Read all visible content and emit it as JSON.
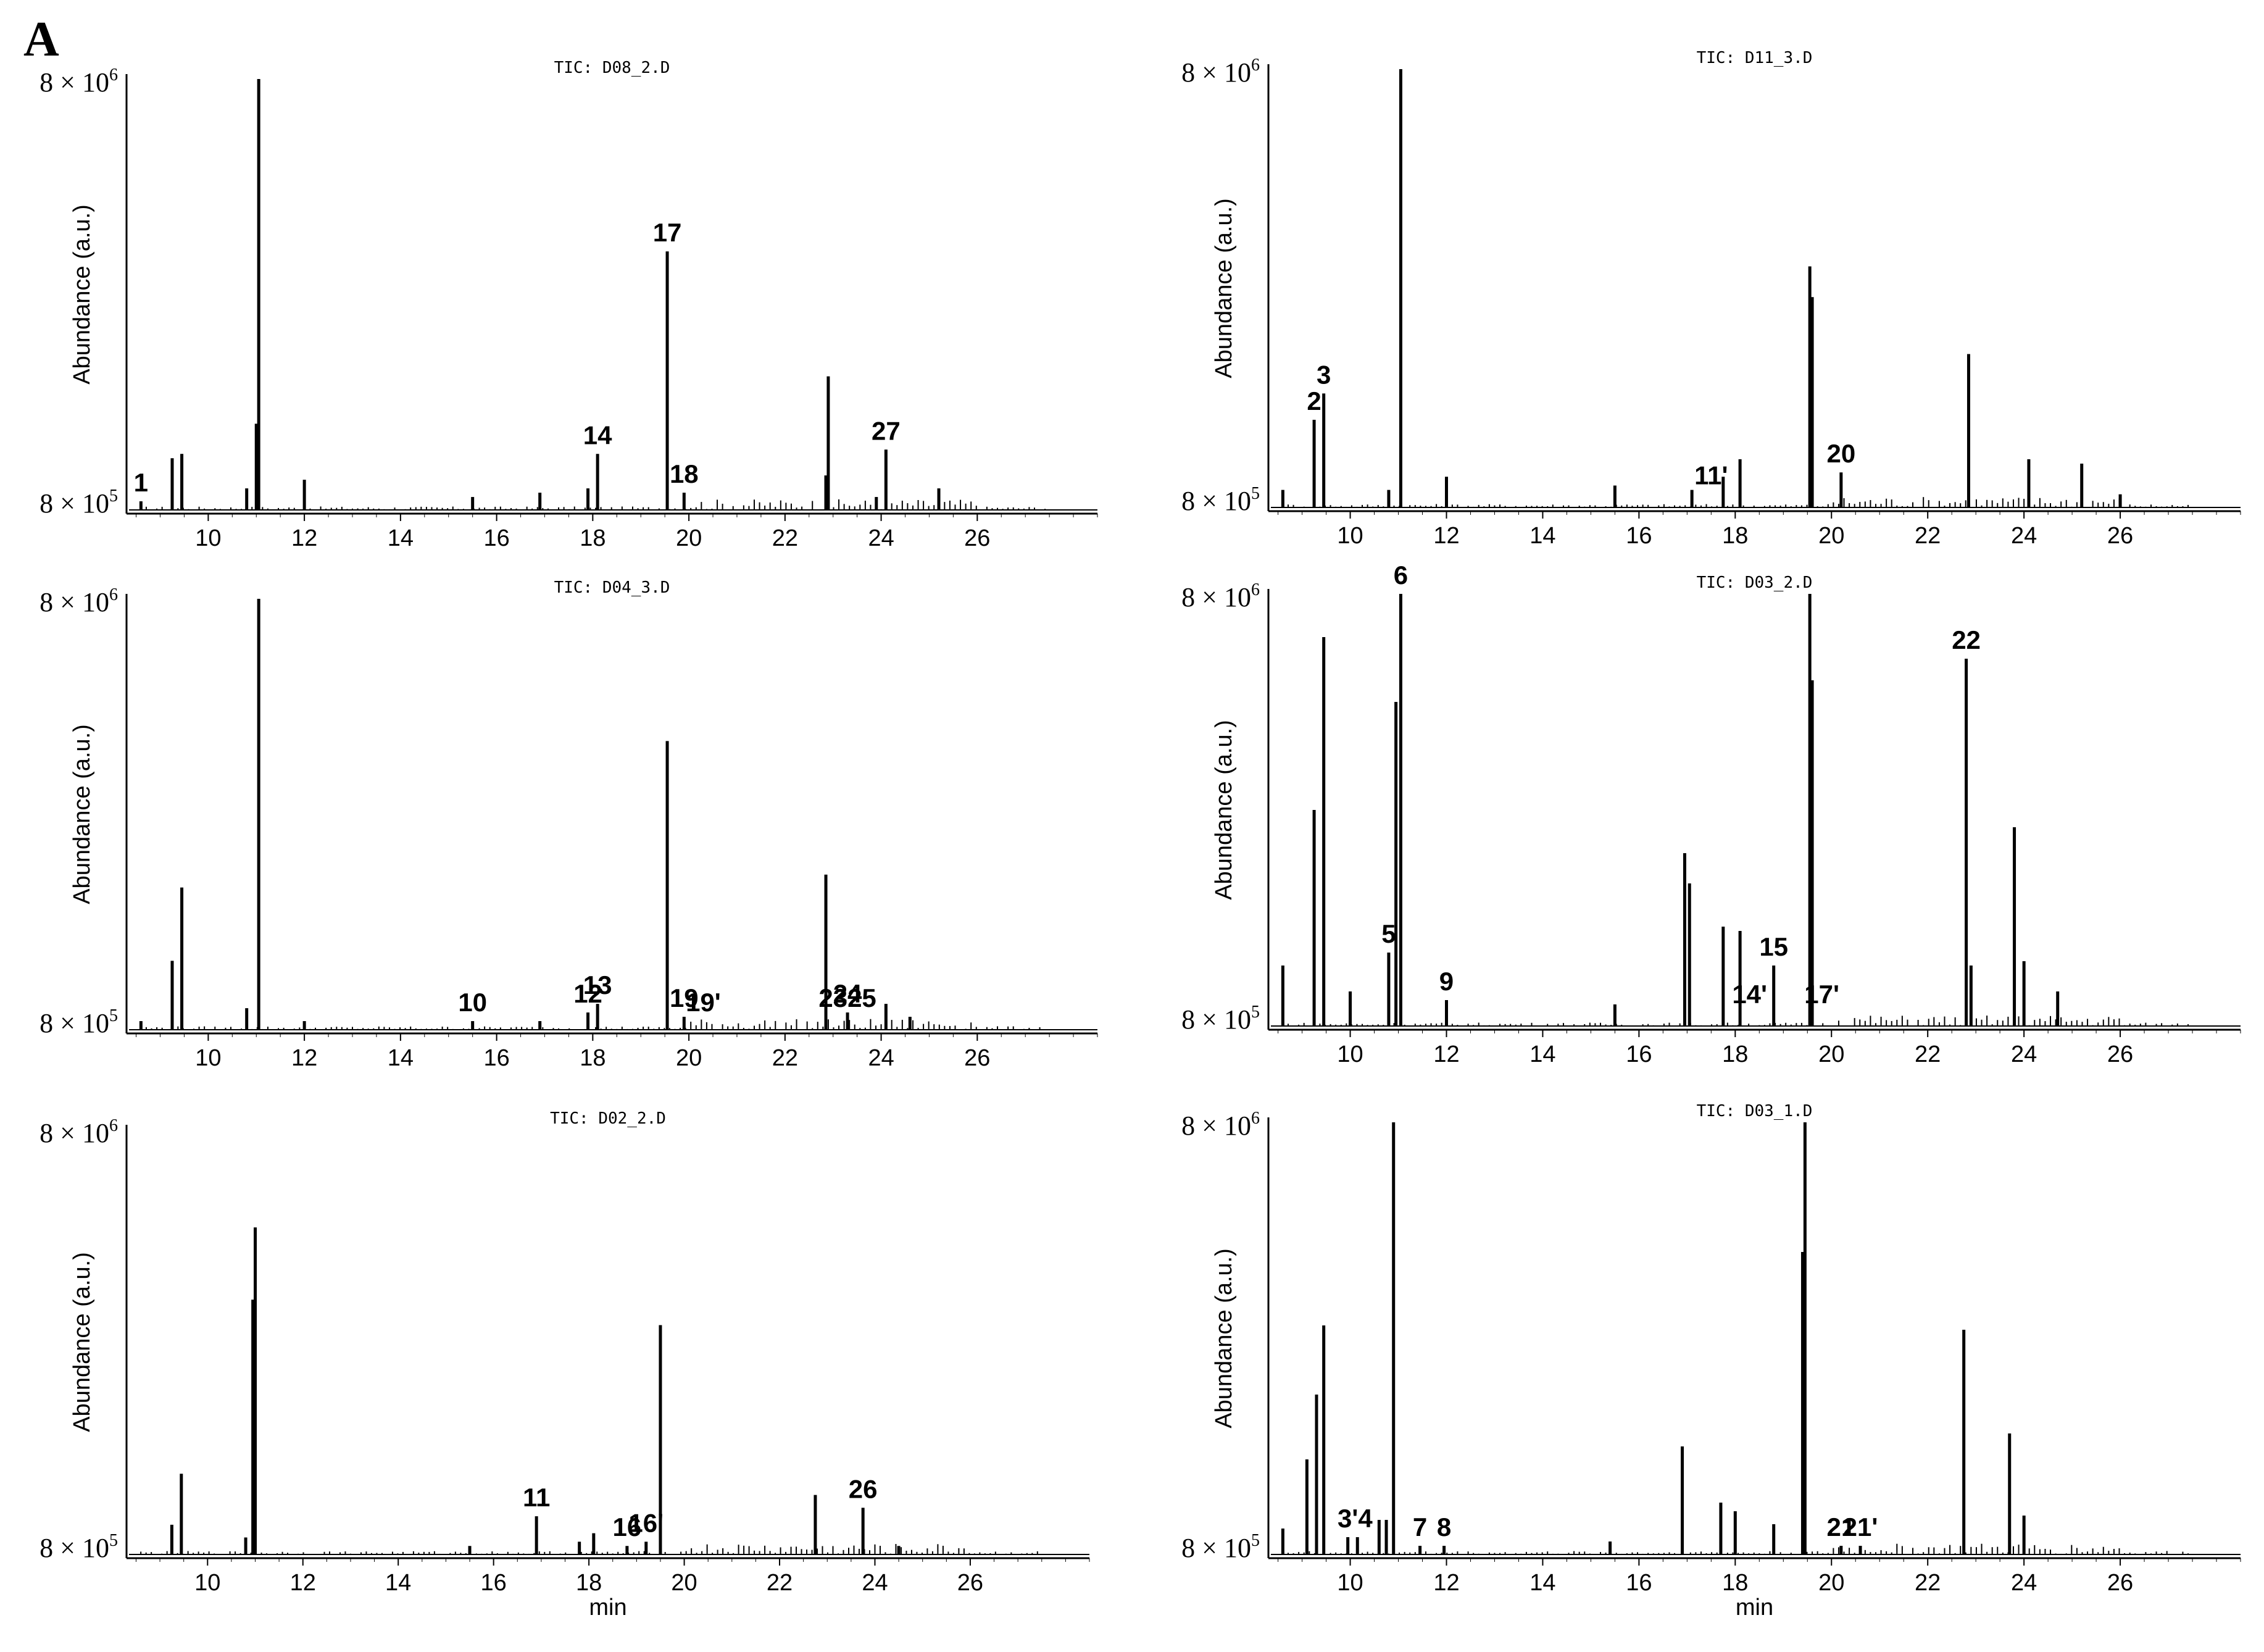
{
  "figure": {
    "label": "A"
  },
  "chart_data": [
    {
      "type": "line",
      "title": "TIC: D08_2.D",
      "ylabel": "Abundance (a.u.)",
      "xlabel": "",
      "xlim": [
        8.3,
        28.5
      ],
      "x_ticks": [
        "10",
        "12",
        "14",
        "16",
        "18",
        "20",
        "22",
        "24",
        "26"
      ],
      "y_ticks": {
        "top": "8 × 10",
        "top_exp": "6",
        "bottom": "8 × 10",
        "bottom_exp": "5"
      },
      "peaks": [
        {
          "rt": 8.6,
          "h": 0.02
        },
        {
          "rt": 9.25,
          "h": 0.12
        },
        {
          "rt": 9.45,
          "h": 0.13
        },
        {
          "rt": 10.8,
          "h": 0.05
        },
        {
          "rt": 11.0,
          "h": 0.2
        },
        {
          "rt": 11.05,
          "h": 1.0
        },
        {
          "rt": 12.0,
          "h": 0.07
        },
        {
          "rt": 15.5,
          "h": 0.03
        },
        {
          "rt": 16.9,
          "h": 0.04
        },
        {
          "rt": 17.9,
          "h": 0.05
        },
        {
          "rt": 18.1,
          "h": 0.13
        },
        {
          "rt": 19.55,
          "h": 0.6
        },
        {
          "rt": 19.9,
          "h": 0.04
        },
        {
          "rt": 22.85,
          "h": 0.08
        },
        {
          "rt": 22.9,
          "h": 0.31
        },
        {
          "rt": 23.9,
          "h": 0.03
        },
        {
          "rt": 24.1,
          "h": 0.14
        },
        {
          "rt": 25.2,
          "h": 0.05
        }
      ],
      "peak_labels": [
        {
          "label": "1",
          "rt": 8.6,
          "h": 0.02
        },
        {
          "label": "14",
          "rt": 18.1,
          "h": 0.13
        },
        {
          "label": "17",
          "rt": 19.55,
          "h": 0.6
        },
        {
          "label": "18",
          "rt": 19.9,
          "h": 0.04
        },
        {
          "label": "27",
          "rt": 24.1,
          "h": 0.14
        }
      ]
    },
    {
      "type": "line",
      "title": "TIC: D11_3.D",
      "ylabel": "Abundance (a.u.)",
      "xlabel": "",
      "xlim": [
        8.3,
        28.5
      ],
      "x_ticks": [
        "10",
        "12",
        "14",
        "16",
        "18",
        "20",
        "22",
        "24",
        "26"
      ],
      "y_ticks": {
        "top": "8 × 10",
        "top_exp": "6",
        "bottom": "8 × 10",
        "bottom_exp": "5"
      },
      "peaks": [
        {
          "rt": 8.6,
          "h": 0.04
        },
        {
          "rt": 9.25,
          "h": 0.2
        },
        {
          "rt": 9.45,
          "h": 0.26
        },
        {
          "rt": 10.8,
          "h": 0.04
        },
        {
          "rt": 11.05,
          "h": 1.0
        },
        {
          "rt": 12.0,
          "h": 0.07
        },
        {
          "rt": 15.5,
          "h": 0.05
        },
        {
          "rt": 17.1,
          "h": 0.04
        },
        {
          "rt": 17.75,
          "h": 0.07
        },
        {
          "rt": 18.1,
          "h": 0.11
        },
        {
          "rt": 19.55,
          "h": 0.55
        },
        {
          "rt": 19.6,
          "h": 0.48
        },
        {
          "rt": 20.2,
          "h": 0.08
        },
        {
          "rt": 22.85,
          "h": 0.35
        },
        {
          "rt": 24.1,
          "h": 0.11
        },
        {
          "rt": 25.2,
          "h": 0.1
        },
        {
          "rt": 26.0,
          "h": 0.03
        }
      ],
      "peak_labels": [
        {
          "label": "2",
          "rt": 9.25,
          "h": 0.2
        },
        {
          "label": "3",
          "rt": 9.45,
          "h": 0.26
        },
        {
          "label": "11'",
          "rt": 17.5,
          "h": 0.03
        },
        {
          "label": "20",
          "rt": 20.2,
          "h": 0.08
        }
      ]
    },
    {
      "type": "line",
      "title": "TIC: D04_3.D",
      "ylabel": "Abundance (a.u.)",
      "xlabel": "",
      "xlim": [
        8.3,
        28.5
      ],
      "x_ticks": [
        "10",
        "12",
        "14",
        "16",
        "18",
        "20",
        "22",
        "24",
        "26"
      ],
      "y_ticks": {
        "top": "8 × 10",
        "top_exp": "6",
        "bottom": "8 × 10",
        "bottom_exp": "5"
      },
      "peaks": [
        {
          "rt": 8.6,
          "h": 0.02
        },
        {
          "rt": 9.25,
          "h": 0.16
        },
        {
          "rt": 9.45,
          "h": 0.33
        },
        {
          "rt": 10.8,
          "h": 0.05
        },
        {
          "rt": 11.05,
          "h": 1.0
        },
        {
          "rt": 12.0,
          "h": 0.02
        },
        {
          "rt": 15.5,
          "h": 0.02
        },
        {
          "rt": 16.9,
          "h": 0.02
        },
        {
          "rt": 17.9,
          "h": 0.04
        },
        {
          "rt": 18.1,
          "h": 0.06
        },
        {
          "rt": 19.55,
          "h": 0.67
        },
        {
          "rt": 19.9,
          "h": 0.03
        },
        {
          "rt": 22.85,
          "h": 0.36
        },
        {
          "rt": 23.3,
          "h": 0.04
        },
        {
          "rt": 24.1,
          "h": 0.06
        },
        {
          "rt": 24.6,
          "h": 0.03
        }
      ],
      "peak_labels": [
        {
          "label": "10",
          "rt": 15.5,
          "h": 0.02
        },
        {
          "label": "12",
          "rt": 17.9,
          "h": 0.04
        },
        {
          "label": "13",
          "rt": 18.1,
          "h": 0.06
        },
        {
          "label": "19",
          "rt": 19.9,
          "h": 0.03
        },
        {
          "label": "19'",
          "rt": 20.3,
          "h": 0.02
        },
        {
          "label": "23",
          "rt": 23.0,
          "h": 0.03
        },
        {
          "label": "24",
          "rt": 23.3,
          "h": 0.04
        },
        {
          "label": "25",
          "rt": 23.6,
          "h": 0.03
        }
      ]
    },
    {
      "type": "line",
      "title": "TIC: D03_2.D",
      "ylabel": "Abundance (a.u.)",
      "xlabel": "",
      "xlim": [
        8.3,
        28.5
      ],
      "x_ticks": [
        "10",
        "12",
        "14",
        "16",
        "18",
        "20",
        "22",
        "24",
        "26"
      ],
      "y_ticks": {
        "top": "8 × 10",
        "top_exp": "6",
        "bottom": "8 × 10",
        "bottom_exp": "5"
      },
      "peaks": [
        {
          "rt": 8.6,
          "h": 0.14
        },
        {
          "rt": 9.25,
          "h": 0.5
        },
        {
          "rt": 9.45,
          "h": 0.9
        },
        {
          "rt": 10.0,
          "h": 0.08
        },
        {
          "rt": 10.8,
          "h": 0.17
        },
        {
          "rt": 10.95,
          "h": 0.75
        },
        {
          "rt": 11.05,
          "h": 1.0
        },
        {
          "rt": 12.0,
          "h": 0.06
        },
        {
          "rt": 15.5,
          "h": 0.05
        },
        {
          "rt": 16.95,
          "h": 0.4
        },
        {
          "rt": 17.05,
          "h": 0.33
        },
        {
          "rt": 17.75,
          "h": 0.23
        },
        {
          "rt": 18.1,
          "h": 0.22
        },
        {
          "rt": 18.8,
          "h": 0.14
        },
        {
          "rt": 19.55,
          "h": 1.0
        },
        {
          "rt": 19.6,
          "h": 0.8
        },
        {
          "rt": 22.8,
          "h": 0.85
        },
        {
          "rt": 22.9,
          "h": 0.14
        },
        {
          "rt": 23.8,
          "h": 0.46
        },
        {
          "rt": 24.0,
          "h": 0.15
        },
        {
          "rt": 24.7,
          "h": 0.08
        }
      ],
      "peak_labels": [
        {
          "label": "5",
          "rt": 10.8,
          "h": 0.17
        },
        {
          "label": "6",
          "rt": 11.05,
          "h": 1.0
        },
        {
          "label": "9",
          "rt": 12.0,
          "h": 0.06
        },
        {
          "label": "14'",
          "rt": 18.3,
          "h": 0.03
        },
        {
          "label": "15",
          "rt": 18.8,
          "h": 0.14
        },
        {
          "label": "17'",
          "rt": 19.8,
          "h": 0.03
        },
        {
          "label": "22",
          "rt": 22.8,
          "h": 0.85
        }
      ]
    },
    {
      "type": "line",
      "title": "TIC: D02_2.D",
      "ylabel": "Abundance (a.u.)",
      "xlabel": "min",
      "xlim": [
        8.3,
        28.5
      ],
      "x_ticks": [
        "10",
        "12",
        "14",
        "16",
        "18",
        "20",
        "22",
        "24",
        "26"
      ],
      "y_ticks": {
        "top": "8 × 10",
        "top_exp": "6",
        "bottom": "8 × 10",
        "bottom_exp": "5"
      },
      "peaks": [
        {
          "rt": 9.25,
          "h": 0.07
        },
        {
          "rt": 9.45,
          "h": 0.19
        },
        {
          "rt": 10.8,
          "h": 0.04
        },
        {
          "rt": 10.95,
          "h": 0.6
        },
        {
          "rt": 11.0,
          "h": 0.77
        },
        {
          "rt": 15.5,
          "h": 0.02
        },
        {
          "rt": 16.9,
          "h": 0.09
        },
        {
          "rt": 17.8,
          "h": 0.03
        },
        {
          "rt": 18.1,
          "h": 0.05
        },
        {
          "rt": 18.8,
          "h": 0.02
        },
        {
          "rt": 19.2,
          "h": 0.03
        },
        {
          "rt": 19.5,
          "h": 0.54
        },
        {
          "rt": 22.75,
          "h": 0.14
        },
        {
          "rt": 23.75,
          "h": 0.11
        },
        {
          "rt": 24.5,
          "h": 0.02
        }
      ],
      "peak_labels": [
        {
          "label": "11",
          "rt": 16.9,
          "h": 0.09
        },
        {
          "label": "16",
          "rt": 18.8,
          "h": 0.02
        },
        {
          "label": "16'",
          "rt": 19.2,
          "h": 0.03
        },
        {
          "label": "26",
          "rt": 23.75,
          "h": 0.11
        }
      ]
    },
    {
      "type": "line",
      "title": "TIC: D03_1.D",
      "ylabel": "Abundance (a.u.)",
      "xlabel": "min",
      "xlim": [
        8.3,
        28.5
      ],
      "x_ticks": [
        "10",
        "12",
        "14",
        "16",
        "18",
        "20",
        "22",
        "24",
        "26"
      ],
      "y_ticks": {
        "top": "8 × 10",
        "top_exp": "6",
        "bottom": "8 × 10",
        "bottom_exp": "5"
      },
      "peaks": [
        {
          "rt": 8.6,
          "h": 0.06
        },
        {
          "rt": 9.1,
          "h": 0.22
        },
        {
          "rt": 9.3,
          "h": 0.37
        },
        {
          "rt": 9.45,
          "h": 0.53
        },
        {
          "rt": 9.95,
          "h": 0.04
        },
        {
          "rt": 10.15,
          "h": 0.04
        },
        {
          "rt": 10.6,
          "h": 0.08
        },
        {
          "rt": 10.75,
          "h": 0.08
        },
        {
          "rt": 10.9,
          "h": 1.0
        },
        {
          "rt": 11.45,
          "h": 0.02
        },
        {
          "rt": 11.95,
          "h": 0.02
        },
        {
          "rt": 15.4,
          "h": 0.03
        },
        {
          "rt": 16.9,
          "h": 0.25
        },
        {
          "rt": 17.7,
          "h": 0.12
        },
        {
          "rt": 18.0,
          "h": 0.1
        },
        {
          "rt": 18.8,
          "h": 0.07
        },
        {
          "rt": 19.4,
          "h": 0.7
        },
        {
          "rt": 19.45,
          "h": 1.0
        },
        {
          "rt": 20.2,
          "h": 0.02
        },
        {
          "rt": 20.6,
          "h": 0.02
        },
        {
          "rt": 22.75,
          "h": 0.52
        },
        {
          "rt": 23.7,
          "h": 0.28
        },
        {
          "rt": 24.0,
          "h": 0.09
        }
      ],
      "peak_labels": [
        {
          "label": "3'4",
          "rt": 10.1,
          "h": 0.04
        },
        {
          "label": "7",
          "rt": 11.45,
          "h": 0.02
        },
        {
          "label": "8",
          "rt": 11.95,
          "h": 0.02
        },
        {
          "label": "21",
          "rt": 20.2,
          "h": 0.02
        },
        {
          "label": "21'",
          "rt": 20.6,
          "h": 0.02
        }
      ]
    }
  ]
}
